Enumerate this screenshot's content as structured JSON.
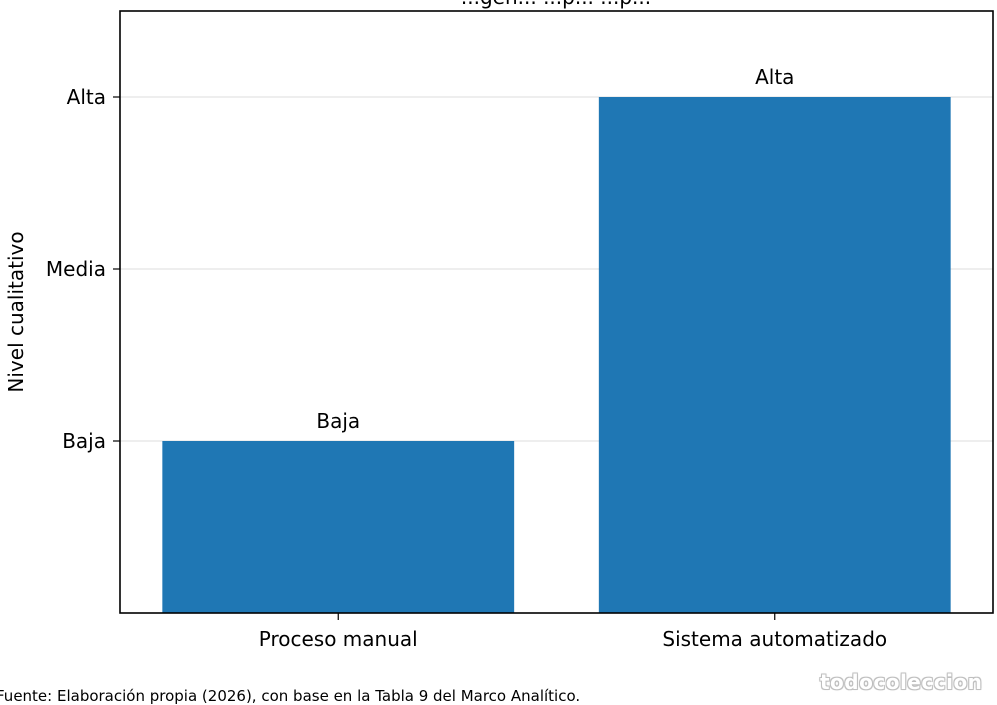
{
  "chart_data": {
    "type": "bar",
    "title": "...gen... ...p... ...p...",
    "categories": [
      "Proceso manual",
      "Sistema automatizado"
    ],
    "values": [
      1,
      3
    ],
    "value_labels": [
      "Baja",
      "Alta"
    ],
    "ylabel": "Nivel cualitativo",
    "xlabel": "",
    "yticks": [
      {
        "value": 1,
        "label": "Baja"
      },
      {
        "value": 2,
        "label": "Media"
      },
      {
        "value": 3,
        "label": "Alta"
      }
    ],
    "ylim": [
      0,
      3.5
    ],
    "grid": "horizontal",
    "legend": "none",
    "bar_color": "#1f77b4"
  },
  "footer": {
    "source": "Fuente: Elaboración propia (2026), con base en la Tabla 9 del Marco Analítico."
  },
  "watermark": {
    "text": "todocoleccion"
  }
}
